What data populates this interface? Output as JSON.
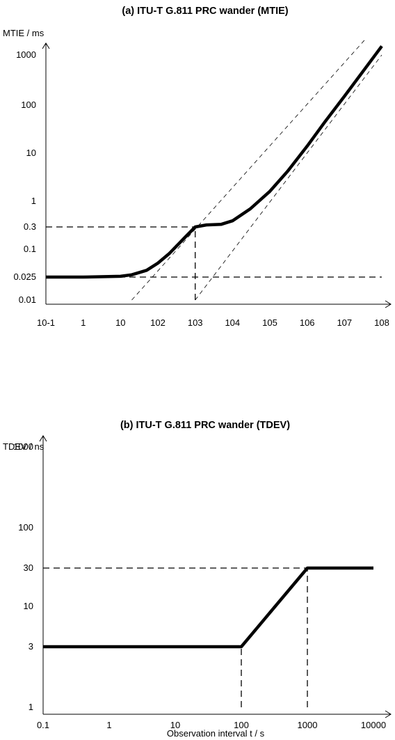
{
  "chart_data": [
    {
      "type": "line",
      "title": "(a) ITU-T G.811 PRC wander (MTIE)",
      "ylabel": "MTIE / ms",
      "xlabel": "",
      "x_scale": "log",
      "y_scale": "log",
      "xlim": [
        0.1,
        100000000
      ],
      "ylim": [
        0.01,
        1000
      ],
      "x_ticks": [
        0.1,
        1,
        10,
        100,
        1000,
        10000,
        100000,
        1000000,
        10000000,
        100000000
      ],
      "x_tick_labels": [
        "10-1",
        "1",
        "10",
        "102",
        "103",
        "104",
        "105",
        "106",
        "107",
        "108"
      ],
      "y_ticks": [
        0.01,
        0.025,
        0.1,
        0.3,
        1,
        10,
        100,
        1000
      ],
      "y_tick_labels": [
        "0.01",
        "0.025",
        "0.1",
        "0.3",
        "1",
        "10",
        "100",
        "1000"
      ],
      "grid": false,
      "series": [
        {
          "style": "solid",
          "x": [
            0.1,
            1,
            10,
            20,
            50,
            100,
            200,
            500,
            1000,
            2000,
            5000,
            10000,
            30000,
            100000,
            300000,
            1000000,
            3000000,
            10000000,
            100000000
          ],
          "y": [
            0.025,
            0.025,
            0.026,
            0.028,
            0.035,
            0.05,
            0.08,
            0.17,
            0.3,
            0.33,
            0.34,
            0.4,
            0.7,
            1.6,
            4.2,
            14,
            45,
            150,
            1500
          ]
        }
      ],
      "reference_lines": [
        {
          "style": "dashed",
          "x": [
            20,
            35000000
          ],
          "y": [
            0.01,
            2000
          ]
        },
        {
          "style": "dashed",
          "x": [
            1000,
            100000000
          ],
          "y": [
            0.01,
            1000
          ]
        },
        {
          "style": "dashed",
          "x": [
            0.1,
            100000000
          ],
          "y": [
            0.025,
            0.025
          ]
        },
        {
          "style": "dashed",
          "x": [
            0.1,
            1000
          ],
          "y": [
            0.3,
            0.3
          ]
        },
        {
          "style": "dashed",
          "x": [
            1000,
            1000
          ],
          "y": [
            0.01,
            0.3
          ]
        }
      ]
    },
    {
      "type": "line",
      "title": "(b) ITU-T G.811 PRC wander (TDEV)",
      "ylabel": "TDEV / ns",
      "xlabel": "Observation interval t / s",
      "x_scale": "log",
      "y_scale": "log",
      "xlim": [
        0.1,
        10000
      ],
      "ylim": [
        1,
        1000
      ],
      "x_ticks": [
        0.1,
        1,
        10,
        100,
        1000,
        10000
      ],
      "x_tick_labels": [
        "0.1",
        "1",
        "10",
        "100",
        "1000",
        "10000"
      ],
      "y_ticks": [
        1,
        3,
        10,
        30,
        100,
        1000
      ],
      "y_tick_labels": [
        "1",
        "3",
        "10",
        "30",
        "100",
        "1000"
      ],
      "grid": false,
      "series": [
        {
          "style": "solid",
          "x": [
            0.1,
            100,
            1000,
            10000
          ],
          "y": [
            3,
            3,
            30,
            30
          ]
        }
      ],
      "reference_lines": [
        {
          "style": "dashed",
          "x": [
            0.1,
            1000
          ],
          "y": [
            30,
            30
          ]
        },
        {
          "style": "dashed",
          "x": [
            100,
            100
          ],
          "y": [
            1,
            3
          ]
        },
        {
          "style": "dashed",
          "x": [
            1000,
            1000
          ],
          "y": [
            1,
            30
          ]
        }
      ]
    }
  ]
}
